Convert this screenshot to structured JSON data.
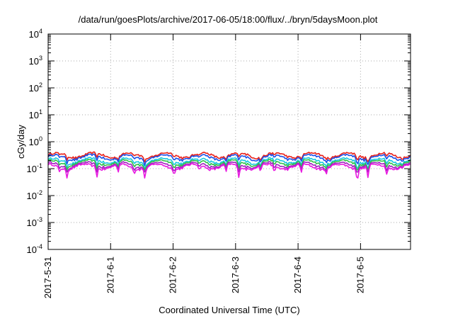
{
  "chart_data": {
    "type": "line",
    "title": "/data/run/goesPlots/archive/2017-06-05/18:00/flux/../bryn/5daysMoon.plot",
    "xlabel": "Coordinated Universal Time (UTC)",
    "ylabel": "cGy/day",
    "yscale": "log",
    "ylim": [
      0.0001,
      10000
    ],
    "xlim": [
      0,
      5.8
    ],
    "grid": true,
    "x_ticks": [
      {
        "value": 0,
        "label": "2017-5-31"
      },
      {
        "value": 1,
        "label": "2017-6-1"
      },
      {
        "value": 2,
        "label": "2017-6-2"
      },
      {
        "value": 3,
        "label": "2017-6-3"
      },
      {
        "value": 4,
        "label": "2017-6-4"
      },
      {
        "value": 5,
        "label": "2017-6-5"
      }
    ],
    "y_ticks": [
      {
        "value": 0.0001,
        "base": "10",
        "exp": "-4"
      },
      {
        "value": 0.001,
        "base": "10",
        "exp": "-3"
      },
      {
        "value": 0.01,
        "base": "10",
        "exp": "-2"
      },
      {
        "value": 0.1,
        "base": "10",
        "exp": "-1"
      },
      {
        "value": 1,
        "base": "10",
        "exp": "0"
      },
      {
        "value": 10,
        "base": "10",
        "exp": "1"
      },
      {
        "value": 100,
        "base": "10",
        "exp": "2"
      },
      {
        "value": 1000,
        "base": "10",
        "exp": "3"
      },
      {
        "value": 10000,
        "base": "10",
        "exp": "4"
      }
    ],
    "series": [
      {
        "color": "#e8201a",
        "base": 0.32,
        "dip_floor": 0.16
      },
      {
        "color": "#1a4fe8",
        "base": 0.27,
        "dip_floor": 0.11
      },
      {
        "color": "#19c8e0",
        "base": 0.2,
        "dip_floor": 0.1
      },
      {
        "color": "#2ec24a",
        "base": 0.17,
        "dip_floor": 0.09
      },
      {
        "color": "#a020c0",
        "base": 0.14,
        "dip_floor": 0.075
      },
      {
        "color": "#e81ae0",
        "base": 0.12,
        "dip_floor": 0.045
      }
    ],
    "dips": [
      {
        "x": 0.18,
        "depth": 0.35
      },
      {
        "x": 0.3,
        "depth": 0.6
      },
      {
        "x": 0.78,
        "depth": 0.55
      },
      {
        "x": 1.12,
        "depth": 0.5
      },
      {
        "x": 1.38,
        "depth": 0.4
      },
      {
        "x": 1.55,
        "depth": 0.7
      },
      {
        "x": 2.02,
        "depth": 0.35
      },
      {
        "x": 2.42,
        "depth": 0.4
      },
      {
        "x": 2.85,
        "depth": 0.45
      },
      {
        "x": 3.05,
        "depth": 0.65
      },
      {
        "x": 3.4,
        "depth": 0.45
      },
      {
        "x": 3.62,
        "depth": 0.5
      },
      {
        "x": 4.05,
        "depth": 0.55
      },
      {
        "x": 4.45,
        "depth": 0.5
      },
      {
        "x": 4.95,
        "depth": 0.75
      },
      {
        "x": 5.12,
        "depth": 0.7
      },
      {
        "x": 5.42,
        "depth": 0.45
      }
    ]
  }
}
